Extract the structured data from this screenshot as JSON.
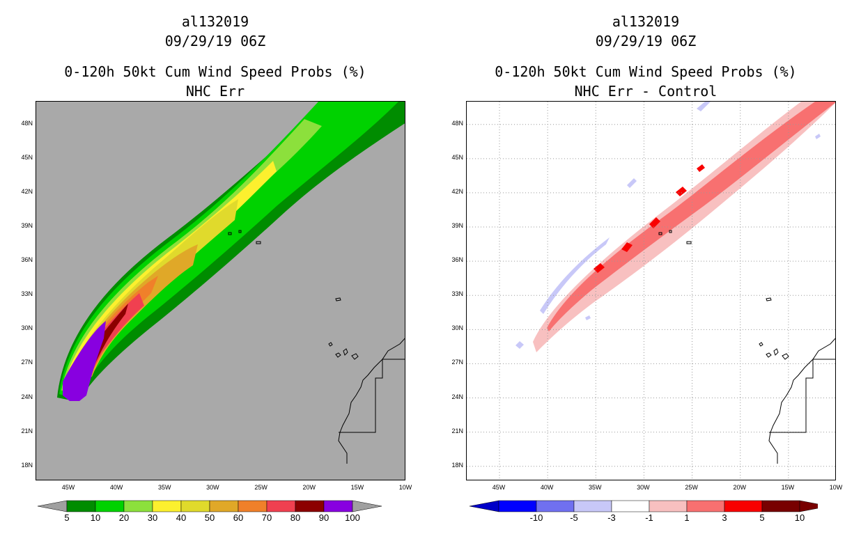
{
  "left": {
    "storm_id": "al132019",
    "datetime": "09/29/19 06Z",
    "product": "0-120h 50kt Cum Wind Speed Probs (%)",
    "subtitle": "NHC Err",
    "background_color": "#a9a9a9",
    "colorbar": {
      "colors": [
        "#008c00",
        "#00d200",
        "#8ce03c",
        "#fcf02e",
        "#e0da2c",
        "#e0a828",
        "#f0802a",
        "#f04050",
        "#8c0000",
        "#8800e0"
      ],
      "labels": [
        "5",
        "10",
        "20",
        "30",
        "40",
        "50",
        "60",
        "70",
        "80",
        "90",
        "100"
      ]
    },
    "contour_colors": [
      "#008c00",
      "#00d200",
      "#8ce03c",
      "#fcf02e",
      "#e0da2c",
      "#e0a828",
      "#f0802a",
      "#f04050",
      "#8c0000",
      "#8800e0"
    ]
  },
  "right": {
    "storm_id": "al132019",
    "datetime": "09/29/19 06Z",
    "product": "0-120h 50kt Cum Wind Speed Probs (%)",
    "subtitle": "NHC Err - Control",
    "background_color": "#ffffff",
    "colorbar": {
      "colors": [
        "#0000c8",
        "#0000ff",
        "#7070f0",
        "#c8c8f8",
        "#ffffff",
        "#f8c0c0",
        "#f87070",
        "#f80000",
        "#780000"
      ],
      "labels": [
        "-10",
        "-5",
        "-3",
        "-1",
        "1",
        "3",
        "5",
        "10"
      ]
    }
  },
  "map": {
    "lat_labels": [
      "48N",
      "45N",
      "42N",
      "39N",
      "36N",
      "33N",
      "30N",
      "27N",
      "24N",
      "21N",
      "18N"
    ],
    "lon_labels": [
      "45W",
      "40W",
      "35W",
      "30W",
      "25W",
      "20W",
      "15W",
      "10W"
    ],
    "lat_values": [
      48,
      45,
      42,
      39,
      36,
      33,
      30,
      27,
      24,
      21,
      18
    ],
    "lon_values": [
      -45,
      -40,
      -35,
      -30,
      -25,
      -20,
      -15,
      -10
    ],
    "lat_range": [
      16.7,
      50.0
    ],
    "lon_range": [
      -48.4,
      -10.0
    ]
  }
}
